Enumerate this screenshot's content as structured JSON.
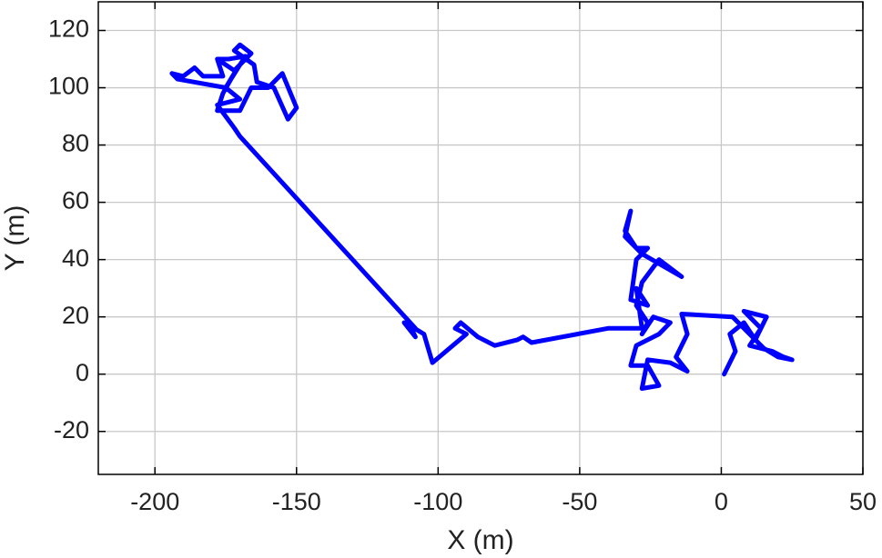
{
  "chart_data": {
    "type": "line",
    "x_label": "X (m)",
    "y_label": "Y (m)",
    "color": "#0000ff",
    "x": [
      1,
      5,
      3,
      8,
      12,
      16,
      8,
      14,
      10,
      18,
      22,
      25,
      20,
      15,
      10,
      4,
      -14,
      -12,
      -16,
      -12,
      -18,
      -26,
      -28,
      -22,
      -26,
      -32,
      -30,
      -22,
      -18,
      -24,
      -28,
      -26,
      -30,
      -28,
      -22,
      -14,
      -28,
      -34,
      -32,
      -34,
      -30,
      -26,
      -30,
      -32,
      -26,
      -30,
      -28,
      -40,
      -67,
      -70,
      -72,
      -80,
      -86,
      -92,
      -94,
      -90,
      -102,
      -105,
      -110,
      -108,
      -112,
      -108,
      -170,
      -172,
      -175,
      -178,
      -170,
      -175,
      -172,
      -176,
      -178,
      -170,
      -166,
      -160,
      -155,
      -150,
      -153,
      -158,
      -164,
      -165,
      -172,
      -170,
      -166,
      -172,
      -178,
      -176,
      -183,
      -186,
      -190,
      -194,
      -192,
      -175,
      -170,
      -168,
      -174,
      -178
    ],
    "values": [
      0,
      8,
      14,
      18,
      12,
      20,
      22,
      16,
      10,
      8,
      6,
      5,
      6,
      9,
      14,
      20,
      21,
      14,
      6,
      1,
      4,
      5,
      -5,
      -4,
      3,
      3,
      10,
      14,
      18,
      20,
      14,
      18,
      24,
      32,
      40,
      34,
      42,
      48,
      57,
      50,
      44,
      44,
      40,
      26,
      24,
      30,
      16,
      16,
      11,
      13,
      12,
      10,
      13,
      18,
      16,
      14,
      4,
      14,
      17,
      13,
      18,
      16,
      83,
      86,
      90,
      94,
      96,
      100,
      105,
      98,
      92,
      92,
      100,
      100,
      105,
      93,
      89,
      100,
      102,
      108,
      113,
      115,
      112,
      106,
      110,
      104,
      104,
      107,
      104,
      105,
      103,
      100,
      108,
      111,
      110,
      110
    ],
    "xlim": [
      -220,
      50
    ],
    "ylim": [
      -35,
      130
    ],
    "xticks": [
      -200,
      -150,
      -100,
      -50,
      0,
      50
    ],
    "yticks": [
      -20,
      0,
      20,
      40,
      60,
      80,
      100,
      120
    ],
    "grid": true
  }
}
